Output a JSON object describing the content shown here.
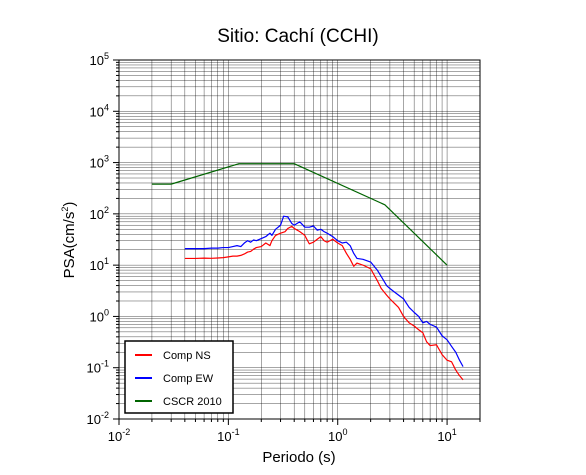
{
  "chart_data": {
    "type": "line",
    "title": "Sitio: Cachí (CCHI)",
    "xlabel": "Periodo (s)",
    "ylabel": "PSA(cm/s²)",
    "ylabel_main": "PSA(cm/s",
    "ylabel_sup": "2",
    "ylabel_close": ")",
    "xscale": "log",
    "yscale": "log",
    "xlim": [
      0.01,
      20
    ],
    "ylim": [
      0.01,
      100000
    ],
    "grid": true,
    "legend_position": "bottom-left",
    "x_ticks": [
      {
        "base": "10",
        "exp": "-2"
      },
      {
        "base": "10",
        "exp": "-1"
      },
      {
        "base": "10",
        "exp": "0"
      },
      {
        "base": "10",
        "exp": "1"
      }
    ],
    "y_ticks": [
      {
        "base": "10",
        "exp": "-2"
      },
      {
        "base": "10",
        "exp": "-1"
      },
      {
        "base": "10",
        "exp": "0"
      },
      {
        "base": "10",
        "exp": "1"
      },
      {
        "base": "10",
        "exp": "2"
      },
      {
        "base": "10",
        "exp": "3"
      },
      {
        "base": "10",
        "exp": "4"
      },
      {
        "base": "10",
        "exp": "5"
      }
    ],
    "x_tick_labels": [
      "10⁻²",
      "10⁻¹",
      "10⁰",
      "10¹"
    ],
    "y_tick_labels": [
      "10⁻²",
      "10⁻¹",
      "10⁰",
      "10¹",
      "10²",
      "10³",
      "10⁴",
      "10⁵"
    ],
    "series": [
      {
        "name": "Comp NS",
        "color": "#ff0000",
        "x": [
          0.04,
          0.05,
          0.06,
          0.07,
          0.08,
          0.09,
          0.1,
          0.11,
          0.12,
          0.13,
          0.14,
          0.15,
          0.16,
          0.17,
          0.18,
          0.2,
          0.22,
          0.24,
          0.25,
          0.27,
          0.3,
          0.33,
          0.35,
          0.38,
          0.4,
          0.45,
          0.5,
          0.55,
          0.6,
          0.65,
          0.7,
          0.75,
          0.8,
          0.9,
          1.0,
          1.1,
          1.2,
          1.3,
          1.4,
          1.5,
          1.7,
          2.0,
          2.3,
          2.5,
          2.8,
          3.0,
          3.3,
          3.6,
          4.0,
          4.5,
          5.0,
          5.5,
          6.0,
          6.5,
          7.0,
          8.0,
          9.0,
          10.0,
          11.0,
          12.0,
          13.0,
          14.0
        ],
        "y": [
          13.5,
          13.5,
          13.7,
          13.6,
          13.8,
          14.0,
          14.5,
          15.0,
          15.0,
          15.5,
          16.5,
          18.0,
          18.5,
          20.5,
          22.0,
          23.0,
          27.0,
          24.0,
          30.0,
          38.0,
          42.0,
          45.0,
          52.0,
          57.0,
          52.0,
          45.0,
          38.0,
          26.0,
          28.0,
          32.0,
          36.0,
          30.0,
          28.0,
          32.0,
          27.0,
          24.0,
          17.0,
          13.0,
          9.5,
          11.0,
          10.0,
          8.5,
          5.0,
          3.5,
          2.6,
          2.2,
          1.8,
          1.5,
          1.0,
          0.75,
          0.65,
          0.55,
          0.48,
          0.32,
          0.27,
          0.28,
          0.18,
          0.14,
          0.13,
          0.09,
          0.07,
          0.058
        ]
      },
      {
        "name": "Comp EW",
        "color": "#0000ff",
        "x": [
          0.04,
          0.05,
          0.06,
          0.07,
          0.08,
          0.09,
          0.1,
          0.11,
          0.12,
          0.13,
          0.14,
          0.15,
          0.16,
          0.17,
          0.18,
          0.2,
          0.22,
          0.24,
          0.25,
          0.27,
          0.3,
          0.32,
          0.35,
          0.38,
          0.4,
          0.45,
          0.5,
          0.55,
          0.6,
          0.65,
          0.7,
          0.75,
          0.8,
          0.9,
          1.0,
          1.1,
          1.2,
          1.3,
          1.4,
          1.5,
          1.7,
          2.0,
          2.3,
          2.5,
          2.8,
          3.0,
          3.3,
          3.6,
          4.0,
          4.5,
          5.0,
          5.5,
          6.0,
          6.5,
          7.0,
          8.0,
          9.0,
          10.0,
          11.0,
          12.0,
          13.0,
          14.0
        ],
        "y": [
          21.0,
          21.0,
          21.0,
          21.5,
          21.5,
          22.0,
          22.0,
          23.0,
          24.0,
          23.0,
          27.0,
          30.0,
          28.0,
          31.0,
          30.0,
          33.0,
          36.0,
          42.0,
          38.0,
          50.0,
          60.0,
          90.0,
          87.0,
          65.0,
          60.0,
          70.0,
          55.0,
          55.0,
          58.0,
          48.0,
          50.0,
          45.0,
          42.0,
          36.0,
          30.0,
          27.0,
          28.0,
          24.0,
          17.0,
          13.5,
          13.0,
          11.5,
          8.0,
          6.0,
          4.0,
          3.5,
          3.0,
          2.6,
          2.2,
          1.5,
          1.2,
          1.0,
          0.75,
          0.8,
          0.7,
          0.62,
          0.42,
          0.35,
          0.26,
          0.2,
          0.14,
          0.105
        ]
      },
      {
        "name": "CSCR 2010",
        "color": "#006400",
        "x": [
          0.02,
          0.03,
          0.125,
          0.4,
          2.7,
          10.0
        ],
        "y": [
          380,
          380,
          950,
          950,
          150,
          10
        ]
      }
    ]
  }
}
